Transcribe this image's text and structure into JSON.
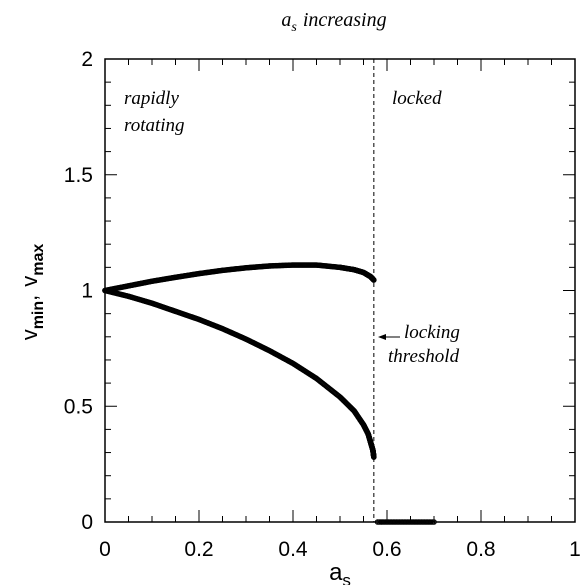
{
  "chart_data": {
    "type": "scatter",
    "title": "a s increasing",
    "title_parts": {
      "main": "a",
      "sub": "s",
      "rest": "increasing"
    },
    "xlabel": {
      "main": "a",
      "sub": "s"
    },
    "ylabel": {
      "a": "v",
      "a_sub": "min",
      "sep": ",",
      "b": "v",
      "b_sub": "max"
    },
    "xlim": [
      0,
      1
    ],
    "ylim": [
      0,
      2
    ],
    "x_ticks": [
      "0",
      "0.2",
      "0.4",
      "0.6",
      "0.8",
      "1"
    ],
    "x_tick_values": [
      0,
      0.2,
      0.4,
      0.6,
      0.8,
      1
    ],
    "y_ticks": [
      "0",
      "0.5",
      "1",
      "1.5",
      "2"
    ],
    "y_tick_values": [
      0,
      0.5,
      1,
      1.5,
      2
    ],
    "grid": false,
    "threshold_x": 0.572,
    "annotations": {
      "region_left": [
        "rapidly",
        "rotating"
      ],
      "region_right": "locked",
      "threshold": [
        "locking",
        "threshold"
      ]
    },
    "series": [
      {
        "points": [
          [
            0,
            1.0
          ],
          [
            0.05,
            1.02
          ],
          [
            0.1,
            1.04
          ],
          [
            0.15,
            1.057
          ],
          [
            0.2,
            1.073
          ],
          [
            0.25,
            1.087
          ],
          [
            0.3,
            1.098
          ],
          [
            0.35,
            1.106
          ],
          [
            0.4,
            1.11
          ],
          [
            0.45,
            1.11
          ],
          [
            0.5,
            1.1
          ],
          [
            0.53,
            1.09
          ],
          [
            0.55,
            1.078
          ],
          [
            0.565,
            1.06
          ],
          [
            0.572,
            1.045
          ]
        ]
      },
      {
        "points": [
          [
            0,
            1.0
          ],
          [
            0.05,
            0.975
          ],
          [
            0.1,
            0.945
          ],
          [
            0.15,
            0.91
          ],
          [
            0.2,
            0.875
          ],
          [
            0.25,
            0.835
          ],
          [
            0.3,
            0.79
          ],
          [
            0.35,
            0.74
          ],
          [
            0.4,
            0.685
          ],
          [
            0.45,
            0.62
          ],
          [
            0.5,
            0.54
          ],
          [
            0.53,
            0.48
          ],
          [
            0.55,
            0.42
          ],
          [
            0.56,
            0.38
          ],
          [
            0.565,
            0.345
          ],
          [
            0.57,
            0.31
          ],
          [
            0.572,
            0.28
          ]
        ]
      },
      {
        "points": [
          [
            0.58,
            0.0
          ],
          [
            0.6,
            0.0
          ],
          [
            0.62,
            0.0
          ],
          [
            0.64,
            0.0
          ],
          [
            0.66,
            0.0
          ],
          [
            0.68,
            0.0
          ],
          [
            0.7,
            0.0
          ]
        ]
      }
    ]
  }
}
